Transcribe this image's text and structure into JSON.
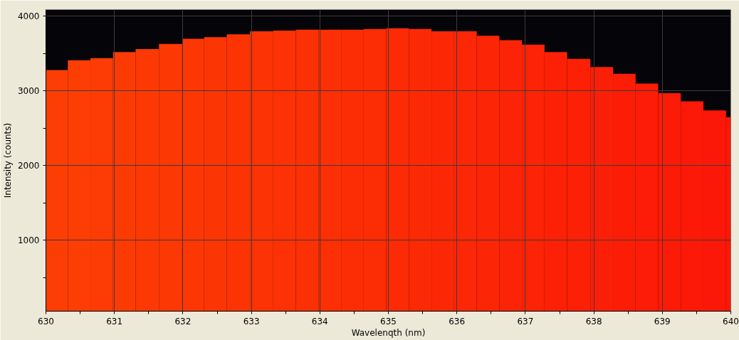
{
  "chart_data": {
    "type": "histogram",
    "xlabel": "Wavelenqth (nm)",
    "ylabel": "Intensity (counts)",
    "bins": [
      630.0,
      630.32,
      630.65,
      630.98,
      631.31,
      631.65,
      631.99,
      632.31,
      632.64,
      632.98,
      633.32,
      633.65,
      633.98,
      634.31,
      634.64,
      634.97,
      635.3,
      635.63,
      635.96,
      636.29,
      636.62,
      636.95,
      637.28,
      637.61,
      637.95,
      638.28,
      638.61,
      638.94,
      639.27,
      639.6,
      639.93,
      640.0
    ],
    "values": [
      3280,
      3410,
      3440,
      3520,
      3560,
      3630,
      3700,
      3720,
      3760,
      3800,
      3810,
      3820,
      3820,
      3820,
      3830,
      3840,
      3830,
      3800,
      3800,
      3740,
      3680,
      3620,
      3520,
      3430,
      3320,
      3230,
      3100,
      2970,
      2860,
      2740,
      2650
    ],
    "colors": [
      "#fc3e04",
      "#fc3d04",
      "#fc3c04",
      "#fc3b04",
      "#fc3904",
      "#fc3804",
      "#fc3704",
      "#fc3504",
      "#fc3404",
      "#fc3304",
      "#fc3105",
      "#fc3005",
      "#fc2f05",
      "#fc2d05",
      "#fc2c05",
      "#fc2b05",
      "#fc2905",
      "#fc2805",
      "#fc2706",
      "#fc2506",
      "#fc2406",
      "#fc2306",
      "#fc2106",
      "#fc2006",
      "#fc1f07",
      "#fc1d07",
      "#fc1c07",
      "#fc1b07",
      "#fc1908",
      "#fc1808",
      "#fc1708"
    ],
    "xlim": [
      630,
      640
    ],
    "ylim": [
      50,
      4090
    ],
    "xticks": [
      630,
      {
        "value": 630.5,
        "label": null
      },
      631,
      {
        "value": 631.5,
        "label": null
      },
      632,
      {
        "value": 632.5,
        "label": null
      },
      633,
      {
        "value": 633.5,
        "label": null
      },
      634,
      {
        "value": 634.5,
        "label": null
      },
      635,
      {
        "value": 635.5,
        "label": null
      },
      636,
      {
        "value": 636.5,
        "label": null
      },
      637,
      {
        "value": 637.5,
        "label": null
      },
      638,
      {
        "value": 638.5,
        "label": null
      },
      639,
      {
        "value": 639.5,
        "label": null
      },
      640
    ],
    "yticks": [
      {
        "value": 500,
        "label": null
      },
      1000,
      {
        "value": 1500,
        "label": null
      },
      2000,
      {
        "value": 2500,
        "label": null
      },
      3000,
      {
        "value": 3500,
        "label": null
      },
      4000
    ],
    "grid": true
  }
}
